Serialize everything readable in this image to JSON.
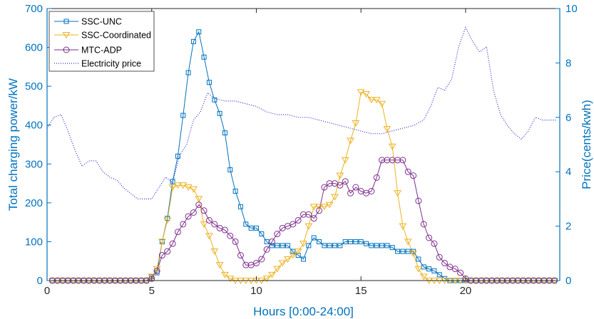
{
  "chart_data": {
    "type": "line",
    "xlabel": "Hours [0:00-24:00]",
    "ylabel_left": "Total charging power/kW",
    "ylabel_right": "Price(cents/kwh)",
    "xlim": [
      0,
      24.5
    ],
    "ylim_left": [
      0,
      700
    ],
    "ylim_right": [
      0,
      10
    ],
    "xticks": [
      "0",
      "5",
      "10",
      "15",
      "20"
    ],
    "yticks_left": [
      "0",
      "100",
      "200",
      "300",
      "400",
      "500",
      "600",
      "700"
    ],
    "yticks_right": [
      "0",
      "2",
      "4",
      "6",
      "8",
      "10"
    ],
    "grid": false,
    "legend_position": "top-left",
    "colors": {
      "axis_left": "#0072BD",
      "axis_right": "#0072BD",
      "ssc_unc": "#0072BD",
      "ssc_coordinated": "#EDB120",
      "mtc_adp": "#7E2F8E",
      "electricity_price": "#3030D0"
    },
    "power_x_start": 0.25,
    "power_x_step": 0.25,
    "series": [
      {
        "name": "SSC-UNC",
        "axis": "left",
        "marker": "square",
        "values": [
          0,
          0,
          0,
          0,
          0,
          0,
          0,
          0,
          0,
          0,
          0,
          0,
          0,
          0,
          0,
          0,
          0,
          0,
          0,
          10,
          20,
          100,
          160,
          255,
          320,
          425,
          535,
          615,
          640,
          575,
          510,
          465,
          430,
          380,
          285,
          230,
          190,
          145,
          135,
          135,
          120,
          100,
          90,
          90,
          90,
          90,
          75,
          65,
          55,
          90,
          110,
          100,
          90,
          90,
          90,
          90,
          100,
          100,
          100,
          100,
          95,
          90,
          90,
          90,
          90,
          85,
          75,
          75,
          75,
          75,
          55,
          35,
          30,
          25,
          15,
          5,
          0,
          0,
          0,
          0,
          0,
          0,
          0,
          0,
          0,
          0,
          0,
          0,
          0,
          0,
          0,
          0,
          0,
          0,
          0,
          0,
          0
        ]
      },
      {
        "name": "SSC-Coordinated",
        "axis": "left",
        "marker": "triangle-down",
        "values": [
          0,
          0,
          0,
          0,
          0,
          0,
          0,
          0,
          0,
          0,
          0,
          0,
          0,
          0,
          0,
          0,
          0,
          0,
          0,
          10,
          30,
          100,
          155,
          240,
          245,
          245,
          240,
          235,
          210,
          145,
          115,
          75,
          40,
          15,
          5,
          0,
          0,
          0,
          0,
          0,
          0,
          5,
          15,
          30,
          45,
          55,
          65,
          75,
          95,
          140,
          190,
          190,
          190,
          195,
          215,
          270,
          310,
          360,
          405,
          485,
          480,
          465,
          465,
          455,
          390,
          345,
          225,
          140,
          100,
          70,
          30,
          10,
          0,
          0,
          0,
          0,
          0,
          0,
          0,
          0,
          0,
          0,
          0,
          0,
          0,
          0,
          0,
          0,
          0,
          0,
          0,
          0,
          0,
          0,
          0,
          0,
          0
        ]
      },
      {
        "name": "MTC-ADP",
        "axis": "left",
        "marker": "circle",
        "values": [
          0,
          0,
          0,
          0,
          0,
          0,
          0,
          0,
          0,
          0,
          0,
          0,
          0,
          0,
          0,
          0,
          0,
          0,
          0,
          5,
          25,
          65,
          75,
          95,
          125,
          145,
          165,
          175,
          195,
          180,
          155,
          145,
          135,
          130,
          115,
          100,
          65,
          40,
          40,
          45,
          55,
          80,
          100,
          120,
          135,
          140,
          145,
          155,
          170,
          170,
          160,
          180,
          240,
          250,
          250,
          245,
          255,
          225,
          240,
          230,
          225,
          230,
          265,
          310,
          310,
          310,
          310,
          310,
          280,
          270,
          205,
          145,
          110,
          95,
          60,
          45,
          35,
          30,
          20,
          5,
          0,
          0,
          0,
          0,
          0,
          0,
          0,
          0,
          0,
          0,
          0,
          0,
          0,
          0,
          0,
          0,
          0
        ]
      },
      {
        "name": "Electricity price",
        "axis": "right",
        "line_style": "dotted",
        "x": [
          0,
          0.33,
          0.67,
          1.0,
          1.33,
          1.67,
          2.0,
          2.33,
          2.67,
          3.0,
          3.33,
          3.67,
          4.0,
          4.33,
          4.67,
          5.0,
          5.33,
          5.67,
          6.0,
          6.33,
          6.67,
          7.0,
          7.33,
          7.67,
          8.0,
          8.5,
          9.0,
          9.5,
          10.0,
          10.5,
          11.0,
          11.5,
          12.0,
          12.5,
          13.0,
          13.5,
          14.0,
          14.5,
          15.0,
          15.5,
          16.0,
          16.5,
          17.0,
          17.5,
          18.0,
          18.33,
          18.67,
          19.0,
          19.33,
          19.67,
          20.0,
          20.33,
          20.67,
          21.0,
          21.33,
          21.67,
          22.0,
          22.33,
          22.67,
          23.0,
          23.33,
          23.67,
          24.0,
          24.33
        ],
        "values": [
          5.6,
          6.0,
          6.1,
          5.5,
          4.8,
          4.2,
          4.4,
          4.4,
          4.0,
          3.8,
          3.7,
          3.4,
          3.2,
          3.0,
          3.0,
          3.0,
          3.4,
          3.8,
          3.6,
          4.6,
          5.0,
          5.9,
          6.2,
          6.9,
          6.7,
          6.6,
          6.6,
          6.5,
          6.4,
          6.2,
          6.1,
          6.1,
          6.0,
          6.0,
          5.9,
          5.8,
          5.7,
          5.6,
          5.5,
          5.4,
          5.4,
          5.5,
          5.6,
          5.7,
          5.9,
          6.4,
          7.1,
          7.0,
          7.4,
          8.6,
          9.3,
          8.8,
          8.4,
          8.6,
          7.0,
          6.1,
          5.7,
          5.4,
          5.2,
          5.5,
          6.0,
          5.9,
          5.9,
          5.9
        ]
      }
    ]
  }
}
